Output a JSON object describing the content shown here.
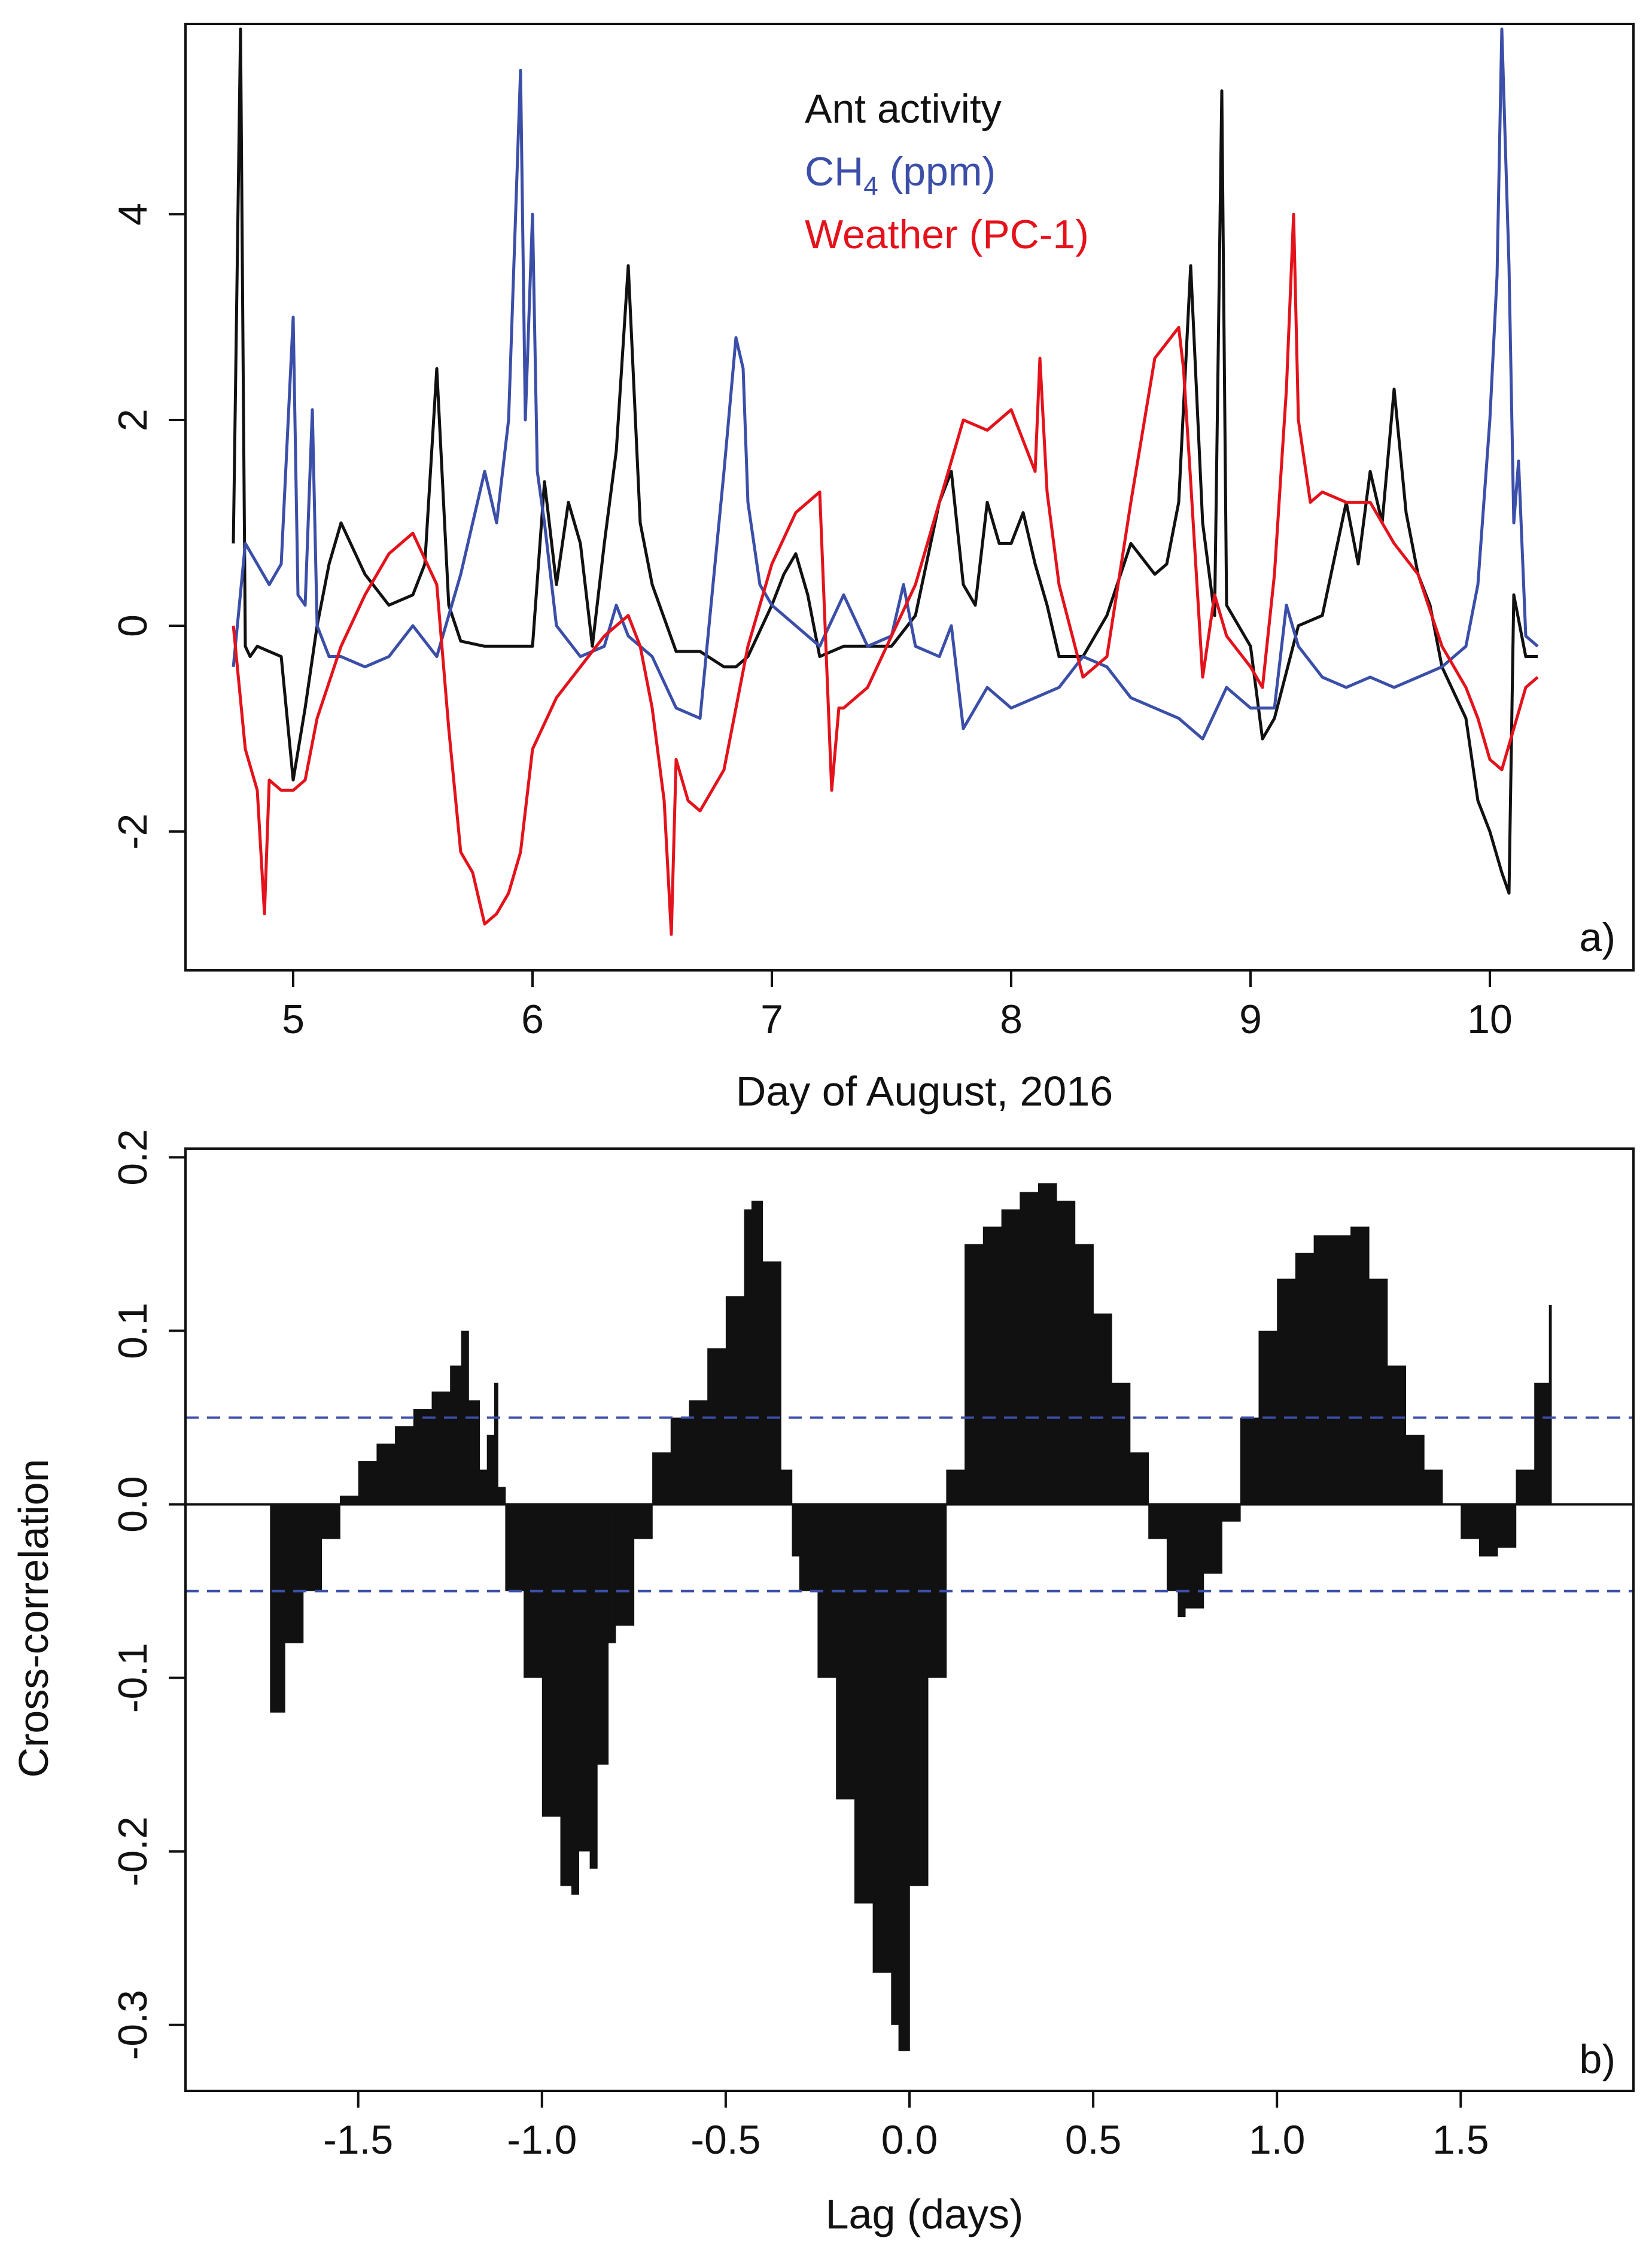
{
  "chart_data": [
    {
      "panel": "a)",
      "type": "line",
      "xlabel": "Day of August, 2016",
      "ylabel": "",
      "xlim": [
        4.55,
        10.6
      ],
      "ylim": [
        -3.35,
        5.85
      ],
      "xticks": [
        5,
        6,
        7,
        8,
        9,
        10
      ],
      "yticks": [
        -2,
        0,
        2,
        4
      ],
      "xtick_labels": [
        "5",
        "6",
        "7",
        "8",
        "9",
        "10"
      ],
      "ytick_labels": [
        "-2",
        "0",
        "2",
        "4"
      ],
      "legend": [
        {
          "label": "Ant activity",
          "color": "#111111",
          "base": "Ant activity",
          "sub": "",
          "rest": ""
        },
        {
          "label": "CH4 (ppm)",
          "color": "#3b4ea8",
          "base": "CH",
          "sub": "4",
          "rest": " (ppm)"
        },
        {
          "label": "Weather (PC-1)",
          "color": "#e3121b",
          "base": "Weather (PC-1)",
          "sub": "",
          "rest": ""
        }
      ],
      "series": [
        {
          "name": "Ant activity",
          "color": "#111111",
          "x": [
            4.75,
            4.78,
            4.8,
            4.82,
            4.85,
            4.9,
            4.95,
            5.0,
            5.05,
            5.1,
            5.15,
            5.2,
            5.3,
            5.4,
            5.5,
            5.55,
            5.6,
            5.65,
            5.7,
            5.8,
            5.9,
            6.0,
            6.05,
            6.1,
            6.15,
            6.2,
            6.25,
            6.3,
            6.35,
            6.4,
            6.45,
            6.5,
            6.6,
            6.7,
            6.8,
            6.85,
            6.9,
            7.0,
            7.05,
            7.1,
            7.15,
            7.2,
            7.3,
            7.4,
            7.5,
            7.6,
            7.7,
            7.75,
            7.8,
            7.85,
            7.9,
            7.95,
            8.0,
            8.05,
            8.1,
            8.15,
            8.2,
            8.3,
            8.4,
            8.5,
            8.6,
            8.65,
            8.7,
            8.75,
            8.8,
            8.85,
            8.88,
            8.9,
            9.0,
            9.05,
            9.1,
            9.2,
            9.3,
            9.4,
            9.45,
            9.5,
            9.55,
            9.6,
            9.65,
            9.7,
            9.75,
            9.8,
            9.9,
            9.95,
            10.0,
            10.05,
            10.08,
            10.1,
            10.15,
            10.2
          ],
          "y": [
            0.8,
            5.8,
            -0.2,
            -0.3,
            -0.2,
            -0.25,
            -0.3,
            -1.5,
            -0.8,
            0.0,
            0.6,
            1.0,
            0.5,
            0.2,
            0.3,
            0.6,
            2.5,
            0.2,
            -0.15,
            -0.2,
            -0.2,
            -0.2,
            1.4,
            0.4,
            1.2,
            0.8,
            -0.2,
            0.8,
            1.7,
            3.5,
            1.0,
            0.4,
            -0.25,
            -0.25,
            -0.4,
            -0.4,
            -0.3,
            0.2,
            0.5,
            0.7,
            0.3,
            -0.3,
            -0.2,
            -0.2,
            -0.2,
            0.1,
            1.2,
            1.5,
            0.4,
            0.2,
            1.2,
            0.8,
            0.8,
            1.1,
            0.6,
            0.2,
            -0.3,
            -0.3,
            0.1,
            0.8,
            0.5,
            0.6,
            1.2,
            3.5,
            1.0,
            0.1,
            5.2,
            0.2,
            -0.2,
            -1.1,
            -0.9,
            0.0,
            0.1,
            1.2,
            0.6,
            1.5,
            1.0,
            2.3,
            1.1,
            0.5,
            0.2,
            -0.4,
            -0.9,
            -1.7,
            -2.0,
            -2.4,
            -2.6,
            0.3,
            -0.3,
            -0.3
          ]
        },
        {
          "name": "CH4 (ppm)",
          "color": "#3b4ea8",
          "x": [
            4.75,
            4.8,
            4.85,
            4.9,
            4.95,
            5.0,
            5.02,
            5.05,
            5.08,
            5.1,
            5.15,
            5.2,
            5.3,
            5.4,
            5.5,
            5.6,
            5.7,
            5.75,
            5.8,
            5.85,
            5.9,
            5.95,
            5.97,
            6.0,
            6.02,
            6.05,
            6.1,
            6.2,
            6.3,
            6.35,
            6.4,
            6.5,
            6.6,
            6.7,
            6.8,
            6.85,
            6.88,
            6.9,
            6.95,
            7.0,
            7.1,
            7.2,
            7.3,
            7.4,
            7.5,
            7.55,
            7.6,
            7.7,
            7.75,
            7.8,
            7.9,
            8.0,
            8.1,
            8.2,
            8.3,
            8.4,
            8.5,
            8.6,
            8.7,
            8.8,
            8.9,
            9.0,
            9.1,
            9.15,
            9.2,
            9.3,
            9.4,
            9.5,
            9.6,
            9.7,
            9.8,
            9.9,
            9.95,
            10.0,
            10.03,
            10.05,
            10.08,
            10.1,
            10.12,
            10.15,
            10.2
          ],
          "y": [
            -0.4,
            0.8,
            0.6,
            0.4,
            0.6,
            3.0,
            0.3,
            0.2,
            2.1,
            0.0,
            -0.3,
            -0.3,
            -0.4,
            -0.3,
            0.0,
            -0.3,
            0.5,
            1.0,
            1.5,
            1.0,
            2.0,
            5.4,
            2.0,
            4.0,
            1.5,
            1.0,
            0.0,
            -0.3,
            -0.2,
            0.2,
            -0.1,
            -0.3,
            -0.8,
            -0.9,
            1.5,
            2.8,
            2.5,
            1.2,
            0.4,
            0.2,
            0.0,
            -0.2,
            0.3,
            -0.2,
            -0.1,
            0.4,
            -0.2,
            -0.3,
            0.0,
            -1.0,
            -0.6,
            -0.8,
            -0.7,
            -0.6,
            -0.3,
            -0.4,
            -0.7,
            -0.8,
            -0.9,
            -1.1,
            -0.6,
            -0.8,
            -0.8,
            0.2,
            -0.2,
            -0.5,
            -0.6,
            -0.5,
            -0.6,
            -0.5,
            -0.4,
            -0.2,
            0.4,
            2.0,
            3.4,
            5.8,
            3.5,
            1.0,
            1.6,
            -0.1,
            -0.2
          ]
        },
        {
          "name": "Weather (PC-1)",
          "color": "#e3121b",
          "x": [
            4.75,
            4.8,
            4.85,
            4.88,
            4.9,
            4.95,
            5.0,
            5.05,
            5.1,
            5.2,
            5.3,
            5.4,
            5.5,
            5.6,
            5.65,
            5.7,
            5.75,
            5.8,
            5.85,
            5.9,
            5.95,
            6.0,
            6.1,
            6.2,
            6.3,
            6.4,
            6.45,
            6.5,
            6.55,
            6.58,
            6.6,
            6.65,
            6.7,
            6.8,
            6.9,
            7.0,
            7.1,
            7.2,
            7.25,
            7.28,
            7.3,
            7.4,
            7.5,
            7.6,
            7.7,
            7.8,
            7.9,
            8.0,
            8.1,
            8.12,
            8.15,
            8.2,
            8.3,
            8.4,
            8.5,
            8.6,
            8.7,
            8.72,
            8.75,
            8.8,
            8.85,
            8.9,
            9.0,
            9.05,
            9.1,
            9.15,
            9.18,
            9.2,
            9.25,
            9.3,
            9.4,
            9.5,
            9.6,
            9.7,
            9.8,
            9.9,
            9.95,
            10.0,
            10.05,
            10.1,
            10.15,
            10.2
          ],
          "y": [
            0.0,
            -1.2,
            -1.6,
            -2.8,
            -1.5,
            -1.6,
            -1.6,
            -1.5,
            -0.9,
            -0.2,
            0.3,
            0.7,
            0.9,
            0.4,
            -1.0,
            -2.2,
            -2.4,
            -2.9,
            -2.8,
            -2.6,
            -2.2,
            -1.2,
            -0.7,
            -0.4,
            -0.1,
            0.1,
            -0.2,
            -0.8,
            -1.7,
            -3.0,
            -1.3,
            -1.7,
            -1.8,
            -1.4,
            -0.2,
            0.6,
            1.1,
            1.3,
            -1.6,
            -0.8,
            -0.8,
            -0.6,
            -0.1,
            0.4,
            1.2,
            2.0,
            1.9,
            2.1,
            1.5,
            2.6,
            1.3,
            0.4,
            -0.5,
            -0.3,
            1.2,
            2.6,
            2.9,
            2.5,
            1.4,
            -0.5,
            0.3,
            -0.1,
            -0.4,
            -0.6,
            0.5,
            2.3,
            4.0,
            2.0,
            1.2,
            1.3,
            1.2,
            1.2,
            0.8,
            0.5,
            -0.2,
            -0.6,
            -0.9,
            -1.3,
            -1.4,
            -1.0,
            -0.6,
            -0.5
          ]
        }
      ]
    },
    {
      "panel": "b)",
      "type": "bar",
      "xlabel": "Lag (days)",
      "ylabel": "Cross-correlation",
      "xlim": [
        -1.97,
        1.97
      ],
      "ylim": [
        -0.338,
        0.205
      ],
      "xticks": [
        -1.5,
        -1.0,
        -0.5,
        0.0,
        0.5,
        1.0,
        1.5
      ],
      "yticks": [
        -0.3,
        -0.2,
        -0.1,
        0.0,
        0.1,
        0.2
      ],
      "xtick_labels": [
        "-1.5",
        "-1.0",
        "-0.5",
        "0.0",
        "0.5",
        "1.0",
        "1.5"
      ],
      "ytick_labels": [
        "-0.3",
        "-0.2",
        "-0.1",
        "0.0",
        "0.1",
        "0.2"
      ],
      "confidence_band": 0.05,
      "series": [
        {
          "name": "Cross-correlation",
          "color": "#111111",
          "x": [
            -1.74,
            -1.7,
            -1.65,
            -1.6,
            -1.55,
            -1.5,
            -1.45,
            -1.4,
            -1.35,
            -1.3,
            -1.25,
            -1.22,
            -1.2,
            -1.17,
            -1.15,
            -1.13,
            -1.12,
            -1.1,
            -1.05,
            -1.0,
            -0.95,
            -0.92,
            -0.9,
            -0.87,
            -0.85,
            -0.82,
            -0.8,
            -0.75,
            -0.7,
            -0.65,
            -0.6,
            -0.55,
            -0.5,
            -0.45,
            -0.43,
            -0.4,
            -0.35,
            -0.32,
            -0.3,
            -0.25,
            -0.2,
            -0.15,
            -0.1,
            -0.05,
            -0.03,
            0.0,
            0.05,
            0.1,
            0.15,
            0.2,
            0.25,
            0.3,
            0.35,
            0.4,
            0.45,
            0.5,
            0.55,
            0.6,
            0.65,
            0.7,
            0.73,
            0.75,
            0.8,
            0.85,
            0.9,
            0.95,
            1.0,
            1.05,
            1.1,
            1.15,
            1.2,
            1.25,
            1.3,
            1.35,
            1.4,
            1.45,
            1.5,
            1.55,
            1.6,
            1.65,
            1.7,
            1.74
          ],
          "y": [
            -0.12,
            -0.08,
            -0.05,
            -0.02,
            0.005,
            0.025,
            0.035,
            0.045,
            0.055,
            0.065,
            0.08,
            0.1,
            0.06,
            0.02,
            0.04,
            0.07,
            0.01,
            -0.05,
            -0.1,
            -0.18,
            -0.22,
            -0.225,
            -0.2,
            -0.21,
            -0.15,
            -0.08,
            -0.07,
            -0.02,
            0.03,
            0.05,
            0.06,
            0.09,
            0.12,
            0.17,
            0.175,
            0.14,
            0.02,
            -0.03,
            -0.05,
            -0.1,
            -0.17,
            -0.23,
            -0.27,
            -0.3,
            -0.315,
            -0.22,
            -0.1,
            0.02,
            0.15,
            0.16,
            0.17,
            0.18,
            0.185,
            0.175,
            0.15,
            0.11,
            0.07,
            0.03,
            -0.02,
            -0.05,
            -0.065,
            -0.06,
            -0.04,
            -0.01,
            0.05,
            0.1,
            0.13,
            0.145,
            0.155,
            0.155,
            0.16,
            0.13,
            0.08,
            0.04,
            0.02,
            0.0,
            -0.02,
            -0.03,
            -0.025,
            0.02,
            0.07,
            0.115
          ]
        }
      ]
    }
  ]
}
